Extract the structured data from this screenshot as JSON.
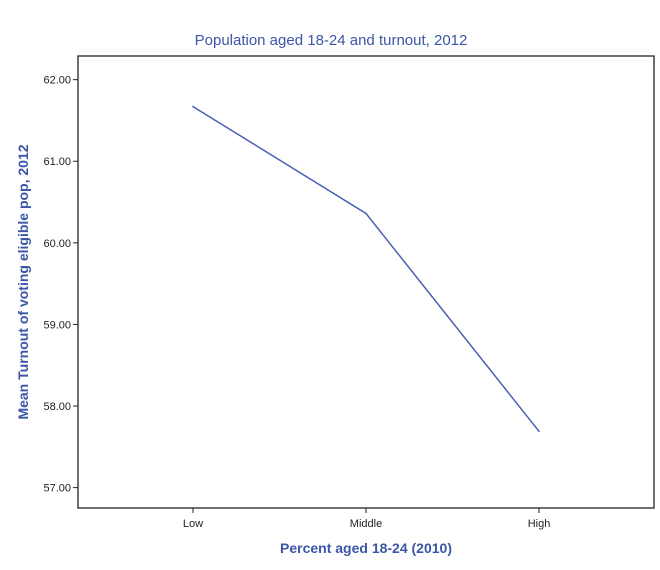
{
  "chart_data": {
    "type": "line",
    "title": "Population aged 18-24 and turnout, 2012",
    "xlabel": "Percent aged 18-24 (2010)",
    "ylabel": "Mean Turnout of voting eligible pop, 2012",
    "categories": [
      "Low",
      "Middle",
      "High"
    ],
    "values": [
      61.67,
      60.36,
      57.69
    ],
    "yticks": [
      "57.00",
      "58.00",
      "59.00",
      "60.00",
      "61.00",
      "62.00"
    ],
    "ylim": [
      56.75,
      62.29
    ],
    "grid": false,
    "line_color": "#4a5fb5",
    "text_color": "#3b56a8"
  }
}
